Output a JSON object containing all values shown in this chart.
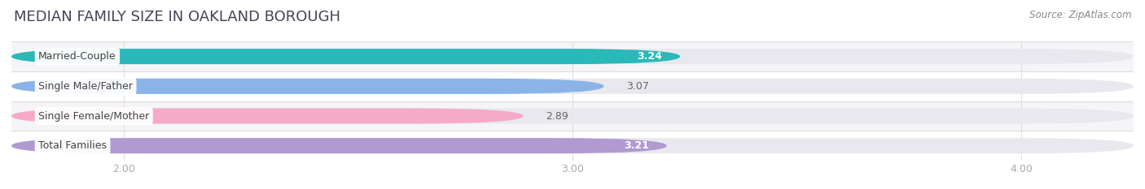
{
  "title": "MEDIAN FAMILY SIZE IN OAKLAND BOROUGH",
  "source": "Source: ZipAtlas.com",
  "categories": [
    "Married-Couple",
    "Single Male/Father",
    "Single Female/Mother",
    "Total Families"
  ],
  "values": [
    3.24,
    3.07,
    2.89,
    3.21
  ],
  "bar_colors": [
    "#2ab8b8",
    "#8ab4e8",
    "#f5aac8",
    "#b09ad0"
  ],
  "value_inside": [
    true,
    false,
    false,
    true
  ],
  "value_colors_inside": [
    "white",
    "#555555",
    "#555555",
    "white"
  ],
  "xmin": 1.75,
  "xmax": 4.25,
  "xticks": [
    2.0,
    3.0,
    4.0
  ],
  "xtick_labels": [
    "2.00",
    "3.00",
    "4.00"
  ],
  "background_color": "#ffffff",
  "bar_bg_color": "#e8e8ee",
  "row_bg_colors": [
    "#f5f5f8",
    "#ffffff",
    "#f5f5f8",
    "#ffffff"
  ],
  "title_fontsize": 13,
  "label_fontsize": 9,
  "value_fontsize": 9,
  "source_fontsize": 8.5
}
